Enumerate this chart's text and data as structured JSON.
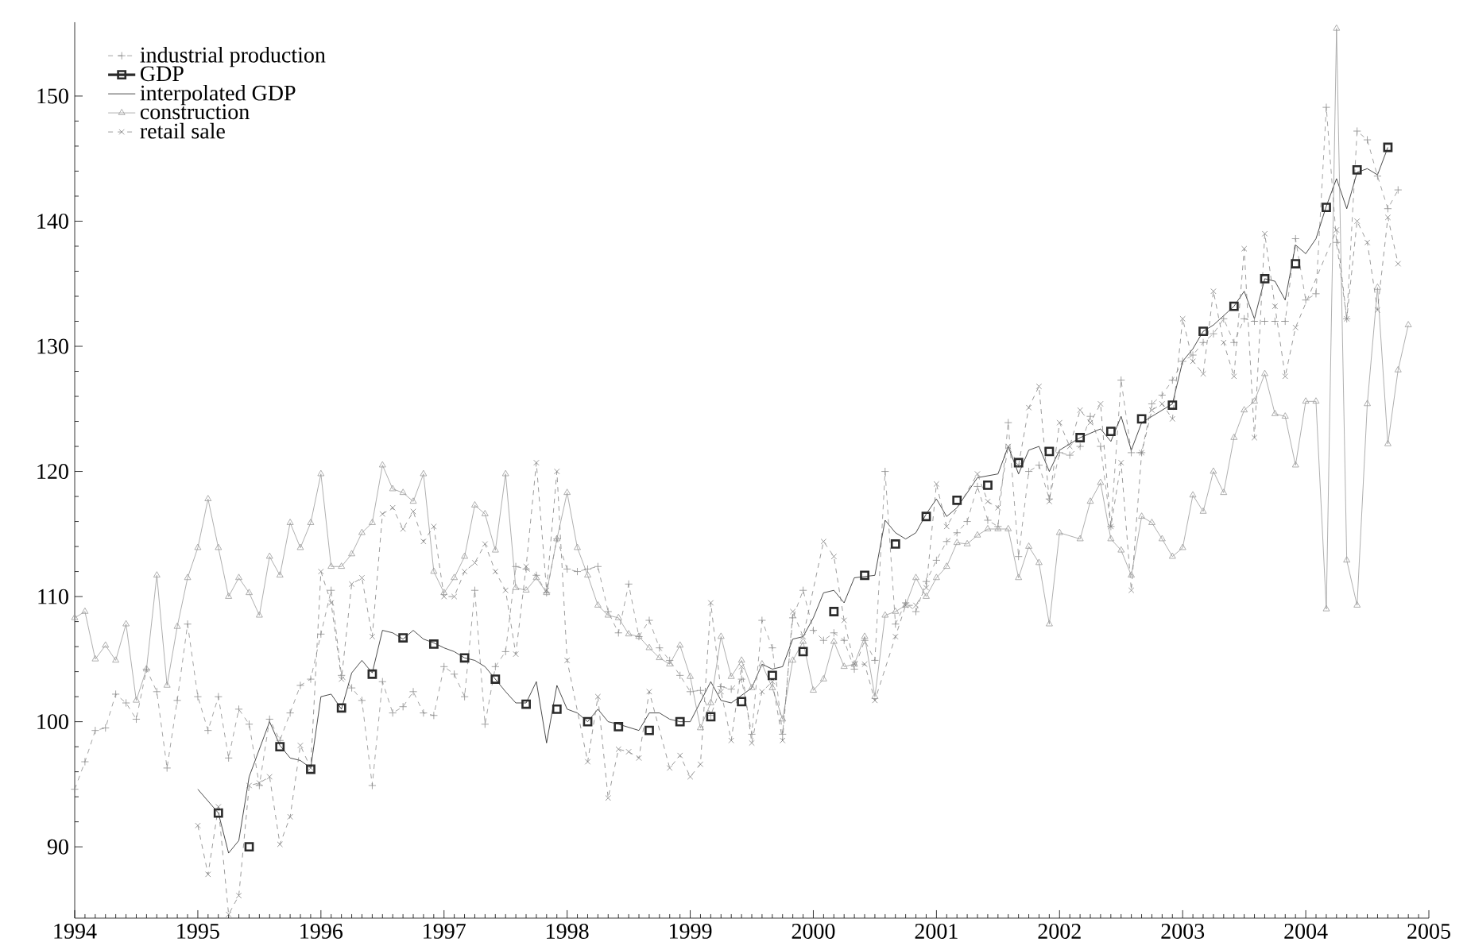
{
  "chart_data": {
    "type": "line",
    "xlim": [
      1994,
      2005
    ],
    "ylim": [
      84.3,
      155.9
    ],
    "xticks": [
      1994,
      1995,
      1996,
      1997,
      1998,
      1999,
      2000,
      2001,
      2002,
      2003,
      2004,
      2005
    ],
    "yticks": [
      90,
      100,
      110,
      120,
      130,
      140,
      150
    ],
    "legend": "top left",
    "series": [
      {
        "name": "industrial production",
        "color": "#8c8c8c",
        "marker": "plus",
        "line_style": "dashed",
        "x": [
          1994.0,
          1994.083,
          1994.167,
          1994.25,
          1994.333,
          1994.417,
          1994.5,
          1994.583,
          1994.667,
          1994.75,
          1994.833,
          1994.917,
          1995.0,
          1995.083,
          1995.167,
          1995.25,
          1995.333,
          1995.417,
          1995.5,
          1995.583,
          1995.667,
          1995.75,
          1995.833,
          1995.917,
          1996.0,
          1996.083,
          1996.167,
          1996.25,
          1996.333,
          1996.417,
          1996.5,
          1996.583,
          1996.667,
          1996.75,
          1996.833,
          1996.917,
          1997.0,
          1997.083,
          1997.167,
          1997.25,
          1997.333,
          1997.417,
          1997.5,
          1997.583,
          1997.667,
          1997.75,
          1997.833,
          1997.917,
          1998.0,
          1998.083,
          1998.167,
          1998.25,
          1998.333,
          1998.417,
          1998.5,
          1998.583,
          1998.667,
          1998.75,
          1998.833,
          1998.917,
          1999.0,
          1999.083,
          1999.167,
          1999.25,
          1999.333,
          1999.417,
          1999.5,
          1999.583,
          1999.667,
          1999.75,
          1999.833,
          1999.917,
          2000.0,
          2000.083,
          2000.167,
          2000.25,
          2000.333,
          2000.417,
          2000.5,
          2000.583,
          2000.667,
          2000.75,
          2000.833,
          2000.917,
          2001.0,
          2001.083,
          2001.167,
          2001.25,
          2001.333,
          2001.417,
          2001.5,
          2001.583,
          2001.667,
          2001.75,
          2001.833,
          2001.917,
          2002.0,
          2002.083,
          2002.167,
          2002.25,
          2002.333,
          2002.417,
          2002.5,
          2002.583,
          2002.667,
          2002.75,
          2002.833,
          2002.917,
          2003.0,
          2003.083,
          2003.167,
          2003.25,
          2003.333,
          2003.417,
          2003.5,
          2003.583,
          2003.667,
          2003.75,
          2003.833,
          2003.917,
          2004.0,
          2004.083,
          2004.167,
          2004.25,
          2004.333,
          2004.417,
          2004.5,
          2004.583,
          2004.667,
          2004.75
        ],
        "values": [
          94.6,
          96.8,
          99.3,
          99.5,
          102.2,
          101.5,
          100.2,
          104.2,
          102.4,
          96.3,
          101.7,
          107.8,
          102.0,
          99.3,
          102.0,
          97.1,
          101.0,
          99.8,
          94.9,
          100.2,
          98.5,
          100.7,
          102.9,
          103.4,
          107.0,
          110.5,
          103.7,
          102.7,
          101.7,
          94.9,
          103.2,
          100.7,
          101.2,
          102.4,
          100.7,
          100.5,
          104.4,
          103.8,
          102.0,
          110.5,
          99.8,
          104.4,
          105.6,
          112.4,
          112.2,
          111.7,
          110.3,
          114.6,
          112.2,
          112.0,
          112.2,
          112.4,
          108.8,
          107.1,
          111.0,
          106.8,
          108.1,
          105.9,
          104.9,
          103.7,
          102.4,
          102.5,
          100.5,
          102.8,
          102.6,
          103.4,
          99.0,
          108.1,
          105.9,
          99.0,
          108.3,
          110.5,
          107.3,
          106.5,
          107.1,
          106.5,
          104.2,
          106.5,
          104.9,
          120.0,
          107.8,
          109.5,
          108.8,
          111.2,
          112.9,
          114.4,
          115.1,
          116.0,
          118.8,
          116.1,
          115.6,
          123.9,
          113.2,
          120.0,
          120.5,
          117.8,
          121.5,
          121.3,
          122.0,
          124.4,
          122.0,
          115.6,
          127.3,
          121.5,
          121.5,
          125.4,
          126.1,
          127.3,
          128.8,
          129.3,
          130.3,
          131.0,
          132.2,
          130.3,
          132.2,
          132.0,
          132.0,
          132.0,
          132.0,
          138.6,
          133.7,
          134.2,
          149.1,
          138.3,
          132.2,
          147.2,
          146.5,
          143.6,
          141.0,
          142.5
        ]
      },
      {
        "name": "GDP",
        "type": "scatter",
        "color": "#2b2b2b",
        "marker": "square",
        "x": [
          1995.167,
          1995.417,
          1995.667,
          1995.917,
          1996.167,
          1996.417,
          1996.667,
          1996.917,
          1997.167,
          1997.417,
          1997.667,
          1997.917,
          1998.167,
          1998.417,
          1998.667,
          1998.917,
          1999.167,
          1999.417,
          1999.667,
          1999.917,
          2000.167,
          2000.417,
          2000.667,
          2000.917,
          2001.167,
          2001.417,
          2001.667,
          2001.917,
          2002.167,
          2002.417,
          2002.667,
          2002.917,
          2003.167,
          2003.417,
          2003.667,
          2003.917,
          2004.167,
          2004.417,
          2004.667
        ],
        "values": [
          92.7,
          90.0,
          98.0,
          96.2,
          101.1,
          103.8,
          106.7,
          106.2,
          105.1,
          103.4,
          101.4,
          101.0,
          100.0,
          99.6,
          99.3,
          100.0,
          100.4,
          101.6,
          103.7,
          105.6,
          108.8,
          111.7,
          114.2,
          116.4,
          117.7,
          118.9,
          120.7,
          121.6,
          122.7,
          123.2,
          124.2,
          125.3,
          131.2,
          133.2,
          135.4,
          136.6,
          141.1,
          144.1,
          145.9
        ]
      },
      {
        "name": "interpolated GDP",
        "color": "#1e1e1e",
        "marker": "none",
        "line_style": "solid",
        "x": [
          1995.0,
          1995.167,
          1995.25,
          1995.333,
          1995.417,
          1995.583,
          1995.667,
          1995.75,
          1995.833,
          1995.917,
          1996.0,
          1996.083,
          1996.167,
          1996.25,
          1996.333,
          1996.417,
          1996.5,
          1996.583,
          1996.667,
          1996.75,
          1996.833,
          1996.917,
          1997.0,
          1997.083,
          1997.167,
          1997.25,
          1997.333,
          1997.417,
          1997.5,
          1997.583,
          1997.667,
          1997.75,
          1997.833,
          1997.917,
          1998.0,
          1998.083,
          1998.167,
          1998.25,
          1998.333,
          1998.417,
          1998.583,
          1998.667,
          1998.75,
          1998.833,
          1998.917,
          1999.0,
          1999.167,
          1999.25,
          1999.333,
          1999.5,
          1999.583,
          1999.667,
          1999.75,
          1999.833,
          1999.917,
          2000.0,
          2000.083,
          2000.167,
          2000.25,
          2000.333,
          2000.5,
          2000.583,
          2000.667,
          2000.75,
          2000.833,
          2000.917,
          2001.0,
          2001.083,
          2001.167,
          2001.333,
          2001.5,
          2001.583,
          2001.667,
          2001.75,
          2001.833,
          2001.917,
          2002.0,
          2002.167,
          2002.333,
          2002.417,
          2002.5,
          2002.583,
          2002.667,
          2002.917,
          2003.0,
          2003.083,
          2003.167,
          2003.25,
          2003.417,
          2003.5,
          2003.583,
          2003.667,
          2003.75,
          2003.833,
          2003.917,
          2004.0,
          2004.083,
          2004.167,
          2004.25,
          2004.333,
          2004.417,
          2004.5,
          2004.583,
          2004.667
        ],
        "values": [
          94.6,
          92.7,
          89.5,
          90.5,
          95.6,
          100.0,
          98.1,
          97.1,
          96.9,
          96.3,
          102.0,
          102.2,
          101.0,
          103.9,
          104.9,
          103.9,
          107.3,
          107.1,
          106.6,
          107.3,
          106.6,
          106.3,
          105.9,
          105.6,
          105.1,
          104.9,
          104.4,
          103.4,
          102.4,
          101.5,
          101.5,
          103.2,
          98.3,
          102.9,
          101.0,
          100.7,
          100.0,
          101.0,
          100.0,
          99.8,
          99.3,
          100.7,
          100.7,
          100.2,
          100.0,
          100.0,
          103.2,
          101.7,
          101.5,
          102.7,
          104.6,
          104.2,
          104.4,
          106.6,
          106.8,
          108.3,
          110.3,
          110.5,
          109.5,
          111.5,
          111.7,
          116.1,
          115.1,
          114.6,
          115.1,
          116.6,
          117.8,
          116.4,
          117.1,
          119.5,
          119.8,
          122.0,
          119.8,
          121.7,
          122.0,
          120.0,
          121.7,
          122.7,
          123.4,
          122.4,
          124.4,
          121.7,
          123.9,
          125.4,
          128.8,
          129.8,
          131.2,
          131.7,
          133.2,
          134.4,
          132.2,
          135.4,
          135.2,
          133.7,
          138.1,
          137.4,
          138.6,
          141.2,
          143.4,
          141.0,
          143.9,
          144.2,
          143.7,
          145.9
        ]
      },
      {
        "name": "construction",
        "color": "#9a9a9a",
        "marker": "triangle",
        "line_style": "solid",
        "x": [
          1994.0,
          1994.083,
          1994.167,
          1994.25,
          1994.333,
          1994.417,
          1994.5,
          1994.583,
          1994.667,
          1994.75,
          1994.833,
          1994.917,
          1995.0,
          1995.083,
          1995.167,
          1995.25,
          1995.333,
          1995.417,
          1995.5,
          1995.583,
          1995.667,
          1995.75,
          1995.833,
          1995.917,
          1996.0,
          1996.083,
          1996.167,
          1996.25,
          1996.333,
          1996.417,
          1996.5,
          1996.583,
          1996.667,
          1996.75,
          1996.833,
          1996.917,
          1997.0,
          1997.083,
          1997.167,
          1997.25,
          1997.333,
          1997.417,
          1997.5,
          1997.583,
          1997.667,
          1997.75,
          1997.833,
          1997.917,
          1998.0,
          1998.083,
          1998.167,
          1998.25,
          1998.333,
          1998.417,
          1998.5,
          1998.583,
          1998.667,
          1998.75,
          1998.833,
          1998.917,
          1999.0,
          1999.083,
          1999.167,
          1999.25,
          1999.333,
          1999.417,
          1999.5,
          1999.583,
          1999.667,
          1999.75,
          1999.833,
          1999.917,
          2000.0,
          2000.083,
          2000.167,
          2000.25,
          2000.333,
          2000.417,
          2000.5,
          2000.583,
          2000.667,
          2000.75,
          2000.833,
          2000.917,
          2001.0,
          2001.083,
          2001.167,
          2001.25,
          2001.333,
          2001.417,
          2001.5,
          2001.583,
          2001.667,
          2001.75,
          2001.833,
          2001.917,
          2002.0,
          2002.167,
          2002.25,
          2002.333,
          2002.417,
          2002.5,
          2002.583,
          2002.667,
          2002.75,
          2002.833,
          2002.917,
          2003.0,
          2003.083,
          2003.167,
          2003.25,
          2003.333,
          2003.417,
          2003.5,
          2003.583,
          2003.667,
          2003.75,
          2003.833,
          2003.917,
          2004.0,
          2004.083,
          2004.167,
          2004.25,
          2004.333,
          2004.417,
          2004.5,
          2004.583,
          2004.667,
          2004.75,
          2004.833
        ],
        "values": [
          108.3,
          108.8,
          105.0,
          106.1,
          104.9,
          107.8,
          101.7,
          104.2,
          111.7,
          102.9,
          107.6,
          111.5,
          113.9,
          117.8,
          113.9,
          110.0,
          111.5,
          110.3,
          108.5,
          113.2,
          111.7,
          115.9,
          113.9,
          115.9,
          119.8,
          112.4,
          112.4,
          113.4,
          115.1,
          115.9,
          120.5,
          118.6,
          118.3,
          117.6,
          119.8,
          112.0,
          110.3,
          111.5,
          113.2,
          117.3,
          116.6,
          113.7,
          119.8,
          110.7,
          110.5,
          111.5,
          110.3,
          114.6,
          118.3,
          113.9,
          111.7,
          109.3,
          108.5,
          108.3,
          107.0,
          106.8,
          105.9,
          105.1,
          104.6,
          106.1,
          103.6,
          99.5,
          101.5,
          106.8,
          103.6,
          104.9,
          102.7,
          104.6,
          102.7,
          100.2,
          104.9,
          106.4,
          102.5,
          103.4,
          106.4,
          104.4,
          104.6,
          106.8,
          102.0,
          108.5,
          108.8,
          109.3,
          111.5,
          110.0,
          111.5,
          112.4,
          114.3,
          114.2,
          114.9,
          115.4,
          115.4,
          115.4,
          111.5,
          114.0,
          112.7,
          107.8,
          115.1,
          114.6,
          117.6,
          119.1,
          114.6,
          113.7,
          111.7,
          116.4,
          115.9,
          114.6,
          113.2,
          113.9,
          118.1,
          116.8,
          120.0,
          118.3,
          122.7,
          124.9,
          125.6,
          127.8,
          124.6,
          124.4,
          120.5,
          125.6,
          125.6,
          109.0,
          155.4,
          112.9,
          109.3,
          125.4,
          134.7,
          122.2,
          128.1,
          131.7
        ]
      },
      {
        "name": "retail sale",
        "color": "#808080",
        "marker": "cross",
        "line_style": "dashed",
        "x": [
          1995.0,
          1995.083,
          1995.167,
          1995.25,
          1995.333,
          1995.417,
          1995.5,
          1995.583,
          1995.667,
          1995.75,
          1995.833,
          1995.917,
          1996.0,
          1996.083,
          1996.167,
          1996.25,
          1996.333,
          1996.417,
          1996.5,
          1996.583,
          1996.667,
          1996.75,
          1996.833,
          1996.917,
          1997.0,
          1997.083,
          1997.167,
          1997.25,
          1997.333,
          1997.417,
          1997.5,
          1997.583,
          1997.667,
          1997.75,
          1997.833,
          1997.917,
          1998.0,
          1998.167,
          1998.25,
          1998.333,
          1998.417,
          1998.5,
          1998.583,
          1998.667,
          1998.833,
          1998.917,
          1999.0,
          1999.083,
          1999.167,
          1999.25,
          1999.333,
          1999.417,
          1999.5,
          1999.583,
          1999.667,
          1999.75,
          1999.833,
          1999.917,
          2000.083,
          2000.167,
          2000.25,
          2000.333,
          2000.417,
          2000.5,
          2000.667,
          2000.75,
          2000.833,
          2000.917,
          2001.0,
          2001.083,
          2001.333,
          2001.417,
          2001.5,
          2001.583,
          2001.667,
          2001.75,
          2001.833,
          2001.917,
          2002.0,
          2002.083,
          2002.167,
          2002.25,
          2002.333,
          2002.417,
          2002.5,
          2002.583,
          2002.667,
          2002.75,
          2002.833,
          2002.917,
          2003.0,
          2003.083,
          2003.167,
          2003.25,
          2003.333,
          2003.417,
          2003.5,
          2003.583,
          2003.667,
          2003.75,
          2003.833,
          2003.917,
          2004.25,
          2004.333,
          2004.417,
          2004.5,
          2004.583,
          2004.667,
          2004.75
        ],
        "values": [
          91.7,
          87.8,
          93.2,
          84.6,
          86.1,
          94.9,
          95.1,
          95.6,
          90.2,
          92.4,
          98.1,
          96.3,
          112.0,
          109.5,
          103.4,
          111.0,
          111.5,
          106.8,
          116.6,
          117.1,
          115.4,
          116.8,
          114.4,
          115.6,
          110.0,
          110.0,
          112.0,
          112.7,
          114.2,
          112.0,
          110.5,
          105.4,
          112.4,
          120.7,
          110.5,
          120.0,
          104.9,
          96.8,
          102.0,
          93.9,
          97.8,
          97.6,
          97.1,
          102.4,
          96.3,
          97.3,
          95.6,
          96.6,
          109.5,
          102.4,
          98.5,
          104.4,
          98.3,
          102.4,
          103.2,
          98.5,
          108.8,
          106.8,
          114.4,
          113.2,
          108.1,
          104.6,
          104.6,
          101.7,
          106.8,
          109.3,
          109.3,
          110.7,
          119.0,
          115.6,
          119.8,
          117.6,
          117.1,
          122.0,
          120.5,
          125.1,
          126.8,
          117.6,
          123.9,
          122.0,
          124.9,
          123.9,
          125.4,
          115.6,
          120.7,
          110.5,
          121.5,
          124.9,
          125.4,
          124.2,
          132.2,
          128.8,
          127.8,
          134.4,
          130.3,
          127.6,
          137.8,
          122.7,
          139.0,
          133.2,
          127.6,
          131.5,
          139.3,
          132.2,
          140.0,
          138.3,
          132.9,
          140.3,
          136.6
        ]
      }
    ]
  }
}
